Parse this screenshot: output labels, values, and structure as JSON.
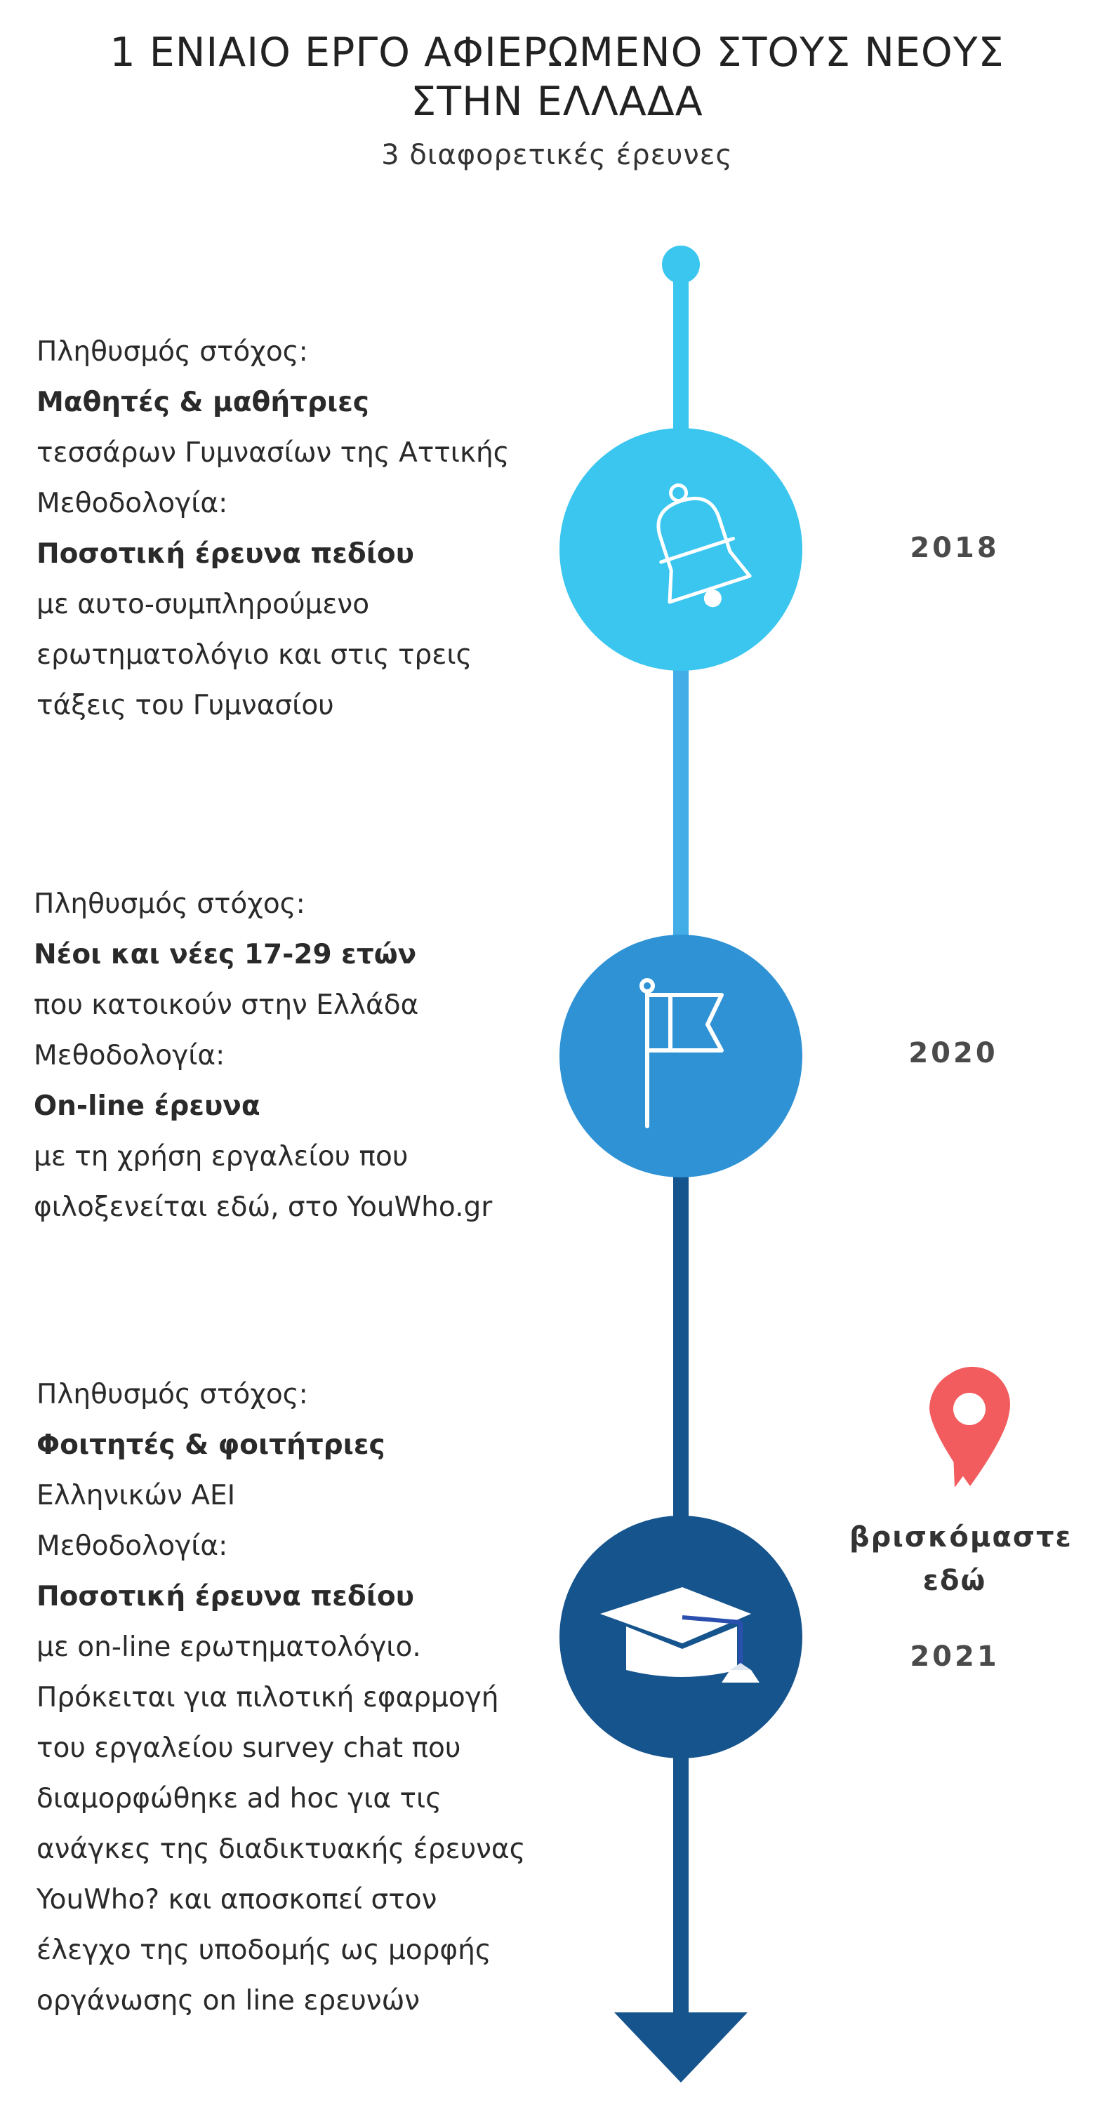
{
  "header": {
    "title_line1": "1 ΕΝΙΑΙΟ ΕΡΓΟ ΑΦΙΕΡΩΜΕΝΟ ΣΤΟΥΣ ΝΕΟΥΣ",
    "title_line2": "ΣΤΗΝ ΕΛΛΑΔΑ",
    "subtitle": "3 διαφορετικές έρευνες"
  },
  "colors": {
    "light_blue": "#3bc6ef",
    "mid_blue": "#2e92d5",
    "dark_blue": "#16548d",
    "pin_red": "#f25c5e"
  },
  "milestones": [
    {
      "year": "2018",
      "icon": "bell-icon",
      "lines": [
        {
          "text": "Πληθυσμός στόχος:",
          "bold": false
        },
        {
          "text": "Μαθητές & μαθήτριες",
          "bold": true
        },
        {
          "text": "τεσσάρων Γυμνασίων της Αττικής",
          "bold": false
        },
        {
          "text": "Μεθοδολογία:",
          "bold": false
        },
        {
          "text": "Ποσοτική έρευνα πεδίου",
          "bold": true
        },
        {
          "text": "με αυτο-συμπληρούμενο",
          "bold": false
        },
        {
          "text": "ερωτηματολόγιο και στις τρεις",
          "bold": false
        },
        {
          "text": "τάξεις του Γυμνασίου",
          "bold": false
        }
      ]
    },
    {
      "year": "2020",
      "icon": "flag-icon",
      "lines": [
        {
          "text": "Πληθυσμός στόχος:",
          "bold": false
        },
        {
          "text": "Νέοι και νέες 17-29 ετών",
          "bold": true
        },
        {
          "text": "που κατοικούν στην Ελλάδα",
          "bold": false
        },
        {
          "text": "Μεθοδολογία:",
          "bold": false
        },
        {
          "text": "On-line έρευνα",
          "bold": true
        },
        {
          "text": "με τη χρήση εργαλείου που",
          "bold": false
        },
        {
          "text": "φιλοξενείται εδώ, στο YouWho.gr",
          "bold": false
        }
      ]
    },
    {
      "year": "2021",
      "icon": "graduation-cap-icon",
      "lines": [
        {
          "text": "Πληθυσμός στόχος:",
          "bold": false
        },
        {
          "text": "Φοιτητές & φοιτήτριες",
          "bold": true
        },
        {
          "text": "Ελληνικών ΑΕΙ",
          "bold": false
        },
        {
          "text": "Μεθοδολογία:",
          "bold": false
        },
        {
          "text": "Ποσοτική έρευνα πεδίου",
          "bold": true
        },
        {
          "text": "με on-line ερωτηματολόγιο.",
          "bold": false
        },
        {
          "text": "Πρόκειται για πιλοτική εφαρμογή",
          "bold": false
        },
        {
          "text": "του εργαλείου survey chat που",
          "bold": false
        },
        {
          "text": "διαμορφώθηκε ad hoc για τις",
          "bold": false
        },
        {
          "text": "ανάγκες της διαδικτυακής έρευνας",
          "bold": false
        },
        {
          "text": "YouWho? και αποσκοπεί στον",
          "bold": false
        },
        {
          "text": "έλεγχο της υποδομής ως μορφής",
          "bold": false
        },
        {
          "text": "οργάνωσης on line ερευνών",
          "bold": false
        }
      ]
    }
  ],
  "current_marker": {
    "label_line1": "βρισκόμαστε",
    "label_line2": "εδώ",
    "icon": "map-pin-icon"
  }
}
